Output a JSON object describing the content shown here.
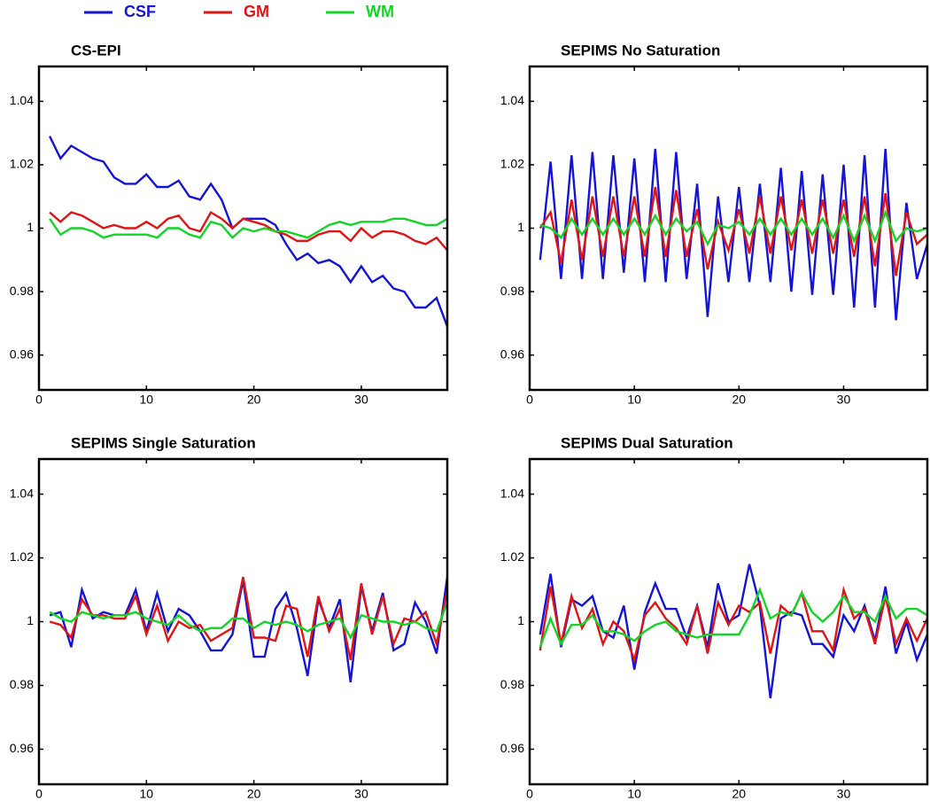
{
  "legend": [
    {
      "name": "CSF",
      "color": "#1414d4"
    },
    {
      "name": "GM",
      "color": "#e01414"
    },
    {
      "name": "WM",
      "color": "#14d428"
    }
  ],
  "chart_data": [
    {
      "type": "line",
      "title": "CS-EPI",
      "x": [
        1,
        2,
        3,
        4,
        5,
        6,
        7,
        8,
        9,
        10,
        11,
        12,
        13,
        14,
        15,
        16,
        17,
        18,
        19,
        20,
        21,
        22,
        23,
        24,
        25,
        26,
        27,
        28,
        29,
        30,
        31,
        32,
        33,
        34,
        35,
        36,
        37,
        38
      ],
      "xlim": [
        0,
        38
      ],
      "xticks": [
        0,
        10,
        20,
        30
      ],
      "ylim": [
        0.949,
        1.051
      ],
      "yticks": [
        0.96,
        0.98,
        1,
        1.02,
        1.04
      ],
      "series": [
        {
          "values": [
            1.029,
            1.022,
            1.026,
            1.024,
            1.022,
            1.021,
            1.016,
            1.014,
            1.014,
            1.017,
            1.013,
            1.013,
            1.015,
            1.01,
            1.009,
            1.014,
            1.009,
            1.0,
            1.003,
            1.003,
            1.003,
            1.001,
            0.995,
            0.99,
            0.992,
            0.989,
            0.99,
            0.988,
            0.983,
            0.988,
            0.983,
            0.985,
            0.981,
            0.98,
            0.975,
            0.975,
            0.978,
            0.969
          ]
        },
        {
          "values": [
            1.005,
            1.002,
            1.005,
            1.004,
            1.002,
            1.0,
            1.001,
            1.0,
            1.0,
            1.002,
            1.0,
            1.003,
            1.004,
            1.0,
            0.999,
            1.005,
            1.003,
            1.0,
            1.003,
            1.002,
            1.001,
            0.999,
            0.998,
            0.996,
            0.996,
            0.998,
            0.999,
            0.999,
            0.996,
            1.0,
            0.997,
            0.999,
            0.999,
            0.998,
            0.996,
            0.995,
            0.997,
            0.993
          ]
        },
        {
          "values": [
            1.003,
            0.998,
            1.0,
            1.0,
            0.999,
            0.997,
            0.998,
            0.998,
            0.998,
            0.998,
            0.997,
            1.0,
            1.0,
            0.998,
            0.997,
            1.002,
            1.001,
            0.997,
            1.0,
            0.999,
            1.0,
            0.999,
            0.999,
            0.998,
            0.997,
            0.999,
            1.001,
            1.002,
            1.001,
            1.002,
            1.002,
            1.002,
            1.003,
            1.003,
            1.002,
            1.001,
            1.001,
            1.003
          ]
        }
      ]
    },
    {
      "type": "line",
      "title": "SEPIMS No Saturation",
      "x": [
        1,
        2,
        3,
        4,
        5,
        6,
        7,
        8,
        9,
        10,
        11,
        12,
        13,
        14,
        15,
        16,
        17,
        18,
        19,
        20,
        21,
        22,
        23,
        24,
        25,
        26,
        27,
        28,
        29,
        30,
        31,
        32,
        33,
        34,
        35,
        36,
        37,
        38
      ],
      "xlim": [
        0,
        38
      ],
      "xticks": [
        0,
        10,
        20,
        30
      ],
      "ylim": [
        0.949,
        1.051
      ],
      "yticks": [
        0.96,
        0.98,
        1,
        1.02,
        1.04
      ],
      "series": [
        {
          "values": [
            0.99,
            1.021,
            0.984,
            1.023,
            0.984,
            1.024,
            0.984,
            1.023,
            0.986,
            1.022,
            0.983,
            1.025,
            0.983,
            1.024,
            0.984,
            1.014,
            0.972,
            1.01,
            0.983,
            1.013,
            0.983,
            1.014,
            0.983,
            1.019,
            0.98,
            1.018,
            0.979,
            1.017,
            0.979,
            1.02,
            0.975,
            1.023,
            0.975,
            1.025,
            0.971,
            1.008,
            0.984,
            0.995
          ]
        },
        {
          "values": [
            1.0,
            1.005,
            0.989,
            1.009,
            0.99,
            1.01,
            0.991,
            1.01,
            0.991,
            1.01,
            0.991,
            1.013,
            0.991,
            1.012,
            0.991,
            1.006,
            0.987,
            1.002,
            0.993,
            1.006,
            0.992,
            1.01,
            0.992,
            1.01,
            0.993,
            1.009,
            0.992,
            1.009,
            0.992,
            1.009,
            0.991,
            1.01,
            0.988,
            1.011,
            0.985,
            1.005,
            0.995,
            0.998
          ]
        },
        {
          "values": [
            1.001,
            1.0,
            0.997,
            1.003,
            0.998,
            1.003,
            0.998,
            1.003,
            0.998,
            1.003,
            0.998,
            1.004,
            0.998,
            1.003,
            0.999,
            1.002,
            0.995,
            1.001,
            1.0,
            1.002,
            0.998,
            1.003,
            0.998,
            1.003,
            0.998,
            1.003,
            0.998,
            1.003,
            0.997,
            1.004,
            0.996,
            1.004,
            0.996,
            1.005,
            0.996,
            1.0,
            0.999,
            1.0
          ]
        }
      ]
    },
    {
      "type": "line",
      "title": "SEPIMS Single Saturation",
      "x": [
        1,
        2,
        3,
        4,
        5,
        6,
        7,
        8,
        9,
        10,
        11,
        12,
        13,
        14,
        15,
        16,
        17,
        18,
        19,
        20,
        21,
        22,
        23,
        24,
        25,
        26,
        27,
        28,
        29,
        30,
        31,
        32,
        33,
        34,
        35,
        36,
        37,
        38
      ],
      "xlim": [
        0,
        38
      ],
      "xticks": [
        0,
        10,
        20,
        30
      ],
      "ylim": [
        0.949,
        1.051
      ],
      "yticks": [
        0.96,
        0.98,
        1,
        1.02,
        1.04
      ],
      "series": [
        {
          "values": [
            1.002,
            1.003,
            0.992,
            1.01,
            1.001,
            1.003,
            1.002,
            1.002,
            1.01,
            0.997,
            1.009,
            0.997,
            1.004,
            1.002,
            0.997,
            0.991,
            0.991,
            0.996,
            1.013,
            0.989,
            0.989,
            1.004,
            1.009,
            0.998,
            0.983,
            1.007,
            0.998,
            1.007,
            0.981,
            1.011,
            0.997,
            1.009,
            0.991,
            0.993,
            1.006,
            1.0,
            0.99,
            1.014
          ]
        },
        {
          "values": [
            1.0,
            0.999,
            0.995,
            1.007,
            1.002,
            1.002,
            1.001,
            1.001,
            1.008,
            0.996,
            1.005,
            0.994,
            1.0,
            0.998,
            0.999,
            0.994,
            0.996,
            0.998,
            1.014,
            0.995,
            0.995,
            0.994,
            1.005,
            1.004,
            0.989,
            1.008,
            0.997,
            1.004,
            0.988,
            1.012,
            0.996,
            1.008,
            0.993,
            1.001,
            1.0,
            1.003,
            0.993,
            1.01
          ]
        },
        {
          "values": [
            1.003,
            1.001,
            1.0,
            1.003,
            1.002,
            1.001,
            1.002,
            1.002,
            1.003,
            1.001,
            1.0,
            0.999,
            1.002,
            0.999,
            0.997,
            0.998,
            0.998,
            1.001,
            1.001,
            0.998,
            1.0,
            0.999,
            1.0,
            0.999,
            0.997,
            0.999,
            1.0,
            1.001,
            0.995,
            1.002,
            1.001,
            1.0,
            1.0,
            0.999,
            1.0,
            0.998,
            0.997,
            1.006
          ]
        }
      ]
    },
    {
      "type": "line",
      "title": "SEPIMS Dual Saturation",
      "x": [
        1,
        2,
        3,
        4,
        5,
        6,
        7,
        8,
        9,
        10,
        11,
        12,
        13,
        14,
        15,
        16,
        17,
        18,
        19,
        20,
        21,
        22,
        23,
        24,
        25,
        26,
        27,
        28,
        29,
        30,
        31,
        32,
        33,
        34,
        35,
        36,
        37,
        38
      ],
      "xlim": [
        0,
        38
      ],
      "xticks": [
        0,
        10,
        20,
        30
      ],
      "ylim": [
        0.949,
        1.051
      ],
      "yticks": [
        0.96,
        0.98,
        1,
        1.02,
        1.04
      ],
      "series": [
        {
          "values": [
            0.996,
            1.015,
            0.992,
            1.007,
            1.005,
            1.008,
            0.997,
            0.995,
            1.005,
            0.985,
            1.003,
            1.012,
            1.004,
            1.004,
            0.995,
            1.005,
            0.992,
            1.012,
            1.0,
            1.002,
            1.018,
            1.005,
            0.976,
            1.001,
            1.003,
            1.002,
            0.993,
            0.993,
            0.989,
            1.002,
            0.997,
            1.005,
            0.994,
            1.011,
            0.99,
            1.0,
            0.988,
            0.996
          ]
        },
        {
          "values": [
            0.991,
            1.011,
            0.993,
            1.008,
            0.998,
            1.004,
            0.993,
            1.0,
            0.997,
            0.988,
            1.002,
            1.006,
            1.001,
            0.998,
            0.993,
            1.005,
            0.99,
            1.006,
            0.999,
            1.005,
            1.003,
            1.006,
            0.99,
            1.005,
            1.002,
            1.009,
            0.997,
            0.997,
            0.991,
            1.01,
            1.001,
            1.004,
            0.993,
            1.008,
            0.993,
            1.001,
            0.994,
            1.001
          ]
        },
        {
          "values": [
            0.992,
            1.001,
            0.993,
            0.999,
            0.999,
            1.002,
            0.997,
            0.997,
            0.996,
            0.994,
            0.997,
            0.999,
            1.0,
            0.997,
            0.996,
            0.995,
            0.996,
            0.996,
            0.996,
            0.996,
            1.002,
            1.01,
            1.001,
            1.003,
            1.002,
            1.009,
            1.003,
            1.0,
            1.003,
            1.008,
            1.003,
            1.003,
            1.0,
            1.008,
            1.001,
            1.004,
            1.004,
            1.002
          ]
        }
      ]
    }
  ]
}
